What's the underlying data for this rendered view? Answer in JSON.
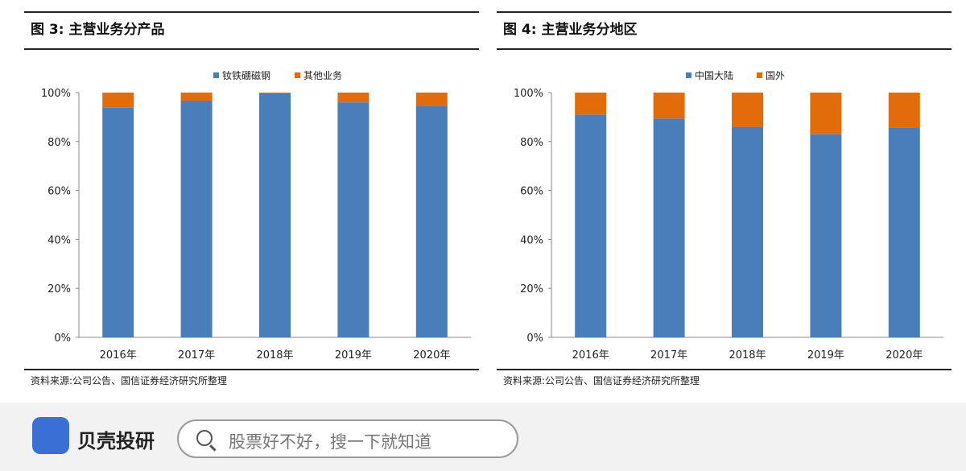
{
  "charts": [
    {
      "title": "图 3: 主营业务分产品",
      "source": "资料来源:公司公告、国信证券经济研究所整理"
    },
    {
      "title": "图 4: 主营业务分地区",
      "source": "资料来源:公司公告、国信证券经济研究所整理"
    }
  ],
  "chart_data": [
    {
      "type": "bar",
      "stacked": true,
      "categories": [
        "2016年",
        "2017年",
        "2018年",
        "2019年",
        "2020年"
      ],
      "series": [
        {
          "name": "钕铁硼磁钢",
          "values": [
            93.8,
            96.7,
            99.7,
            96.0,
            94.4
          ],
          "color": "#4a7ebb"
        },
        {
          "name": "其他业务",
          "values": [
            6.2,
            3.3,
            0.3,
            4.0,
            5.6
          ],
          "color": "#e36c0a"
        }
      ],
      "yticks": [
        "0%",
        "20%",
        "40%",
        "60%",
        "80%",
        "100%"
      ],
      "ylim": [
        0,
        100
      ],
      "legend": "top"
    },
    {
      "type": "bar",
      "stacked": true,
      "categories": [
        "2016年",
        "2017年",
        "2018年",
        "2019年",
        "2020年"
      ],
      "series": [
        {
          "name": "中国大陆",
          "values": [
            91.0,
            89.4,
            86.0,
            83.0,
            85.8
          ],
          "color": "#4a7ebb"
        },
        {
          "name": "国外",
          "values": [
            9.0,
            10.6,
            14.0,
            17.0,
            14.2
          ],
          "color": "#e36c0a"
        }
      ],
      "yticks": [
        "0%",
        "20%",
        "40%",
        "60%",
        "80%",
        "100%"
      ],
      "ylim": [
        0,
        100
      ],
      "legend": "top"
    }
  ],
  "footer": {
    "brand": "贝壳投研",
    "search_placeholder": "股票好不好，搜一下就知道"
  }
}
